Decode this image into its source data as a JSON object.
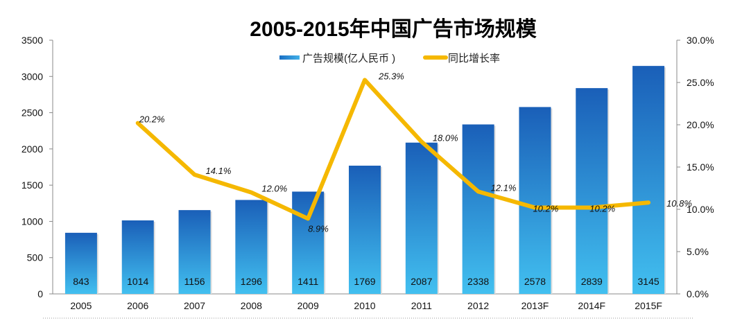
{
  "chart_data": {
    "type": "bar+line",
    "title": "2005-2015年中国广告市场规模",
    "categories": [
      "2005",
      "2006",
      "2007",
      "2008",
      "2009",
      "2010",
      "2011",
      "2012",
      "2013F",
      "2014F",
      "2015F"
    ],
    "series": [
      {
        "name": "广告规模(亿人民币 )",
        "type": "bar",
        "axis": "left",
        "values": [
          843,
          1014,
          1156,
          1296,
          1411,
          1769,
          2087,
          2338,
          2578,
          2839,
          3145
        ],
        "labels": [
          "843",
          "1014",
          "1156",
          "1296",
          "1411",
          "1769",
          "2087",
          "2338",
          "2578",
          "2839",
          "3145"
        ],
        "color": "#1a6fc4"
      },
      {
        "name": "同比增长率",
        "type": "line",
        "axis": "right",
        "values": [
          null,
          20.2,
          14.1,
          12.0,
          8.9,
          25.3,
          18.0,
          12.1,
          10.2,
          10.2,
          10.8
        ],
        "labels": [
          "",
          "20.2%",
          "14.1%",
          "12.0%",
          "8.9%",
          "25.3%",
          "18.0%",
          "12.1%",
          "10.2%",
          "10.2%",
          "10.8%"
        ],
        "color": "#f5b800"
      }
    ],
    "ylim": [
      0,
      3500
    ],
    "yticks": [
      "0",
      "500",
      "1000",
      "1500",
      "2000",
      "2500",
      "3000",
      "3500"
    ],
    "y2lim": [
      0,
      30
    ],
    "y2ticks": [
      "0.0%",
      "5.0%",
      "10.0%",
      "15.0%",
      "20.0%",
      "25.0%",
      "30.0%"
    ],
    "legend": "top-center",
    "grid": false
  }
}
